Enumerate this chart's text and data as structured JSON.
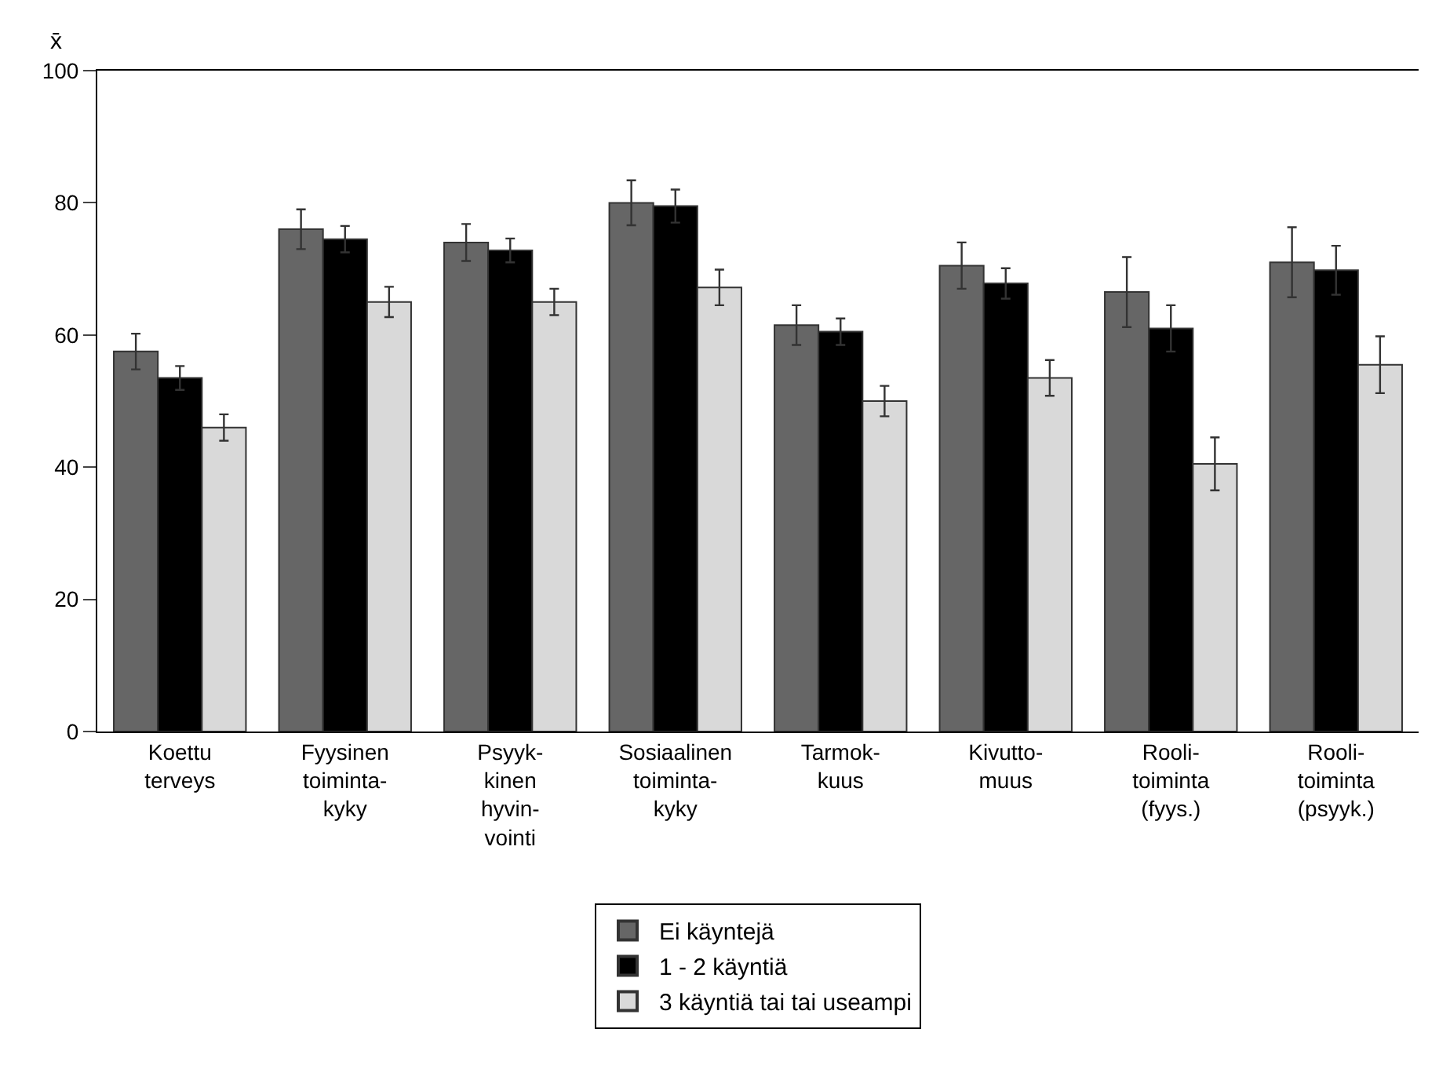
{
  "chart_data": {
    "type": "bar",
    "ylabel": "x̄",
    "categories": [
      "Koettu\nterveys",
      "Fyysinen\ntoiminta-\nkyky",
      "Psyyk-\nkinen\nhyvin-\nvointi",
      "Sosiaalinen\ntoiminta-\nkyky",
      "Tarmok-\nkuus",
      "Kivutto-\nmuus",
      "Rooli-\ntoiminta\n(fyys.)",
      "Rooli-\ntoiminta\n(psyyk.)"
    ],
    "series": [
      {
        "name": "Ei käyntejä",
        "color": "#666666",
        "values": [
          57.5,
          76,
          74,
          80,
          61.5,
          70.5,
          66.5,
          71
        ],
        "errors": [
          2.7,
          3,
          2.8,
          3.4,
          3,
          3.5,
          5.3,
          5.3
        ]
      },
      {
        "name": "1 - 2 käyntiä",
        "color": "#000000",
        "values": [
          53.5,
          74.5,
          72.8,
          79.5,
          60.5,
          67.8,
          61,
          69.8
        ],
        "errors": [
          1.8,
          2,
          1.8,
          2.5,
          2,
          2.3,
          3.5,
          3.7
        ]
      },
      {
        "name": "3 käyntiä tai tai useampi",
        "color": "#d9d9d9",
        "values": [
          46,
          65,
          65,
          67.2,
          50,
          53.5,
          40.5,
          55.5
        ],
        "errors": [
          2,
          2.3,
          2,
          2.7,
          2.3,
          2.7,
          4,
          4.3
        ]
      }
    ],
    "ylim": [
      0,
      100
    ],
    "yticks": [
      0,
      20,
      40,
      60,
      80,
      100
    ],
    "legend": "bottom"
  }
}
